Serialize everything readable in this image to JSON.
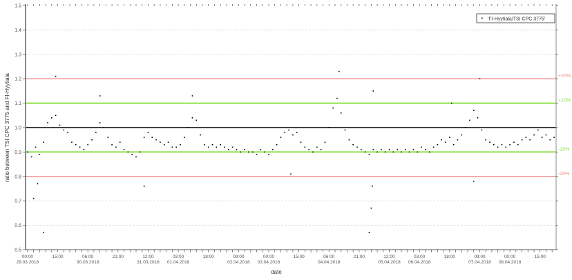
{
  "chart_data": {
    "type": "scatter",
    "title": "",
    "xlabel": "date",
    "ylabel": "ratio between TSI CPC 3775 and FI-Hyytiala",
    "ylim": [
      0.5,
      1.5
    ],
    "xlim": [
      "28.03.2018 23:00",
      "08.04.2018 23:00"
    ],
    "yticks": [
      "0.5",
      "0.6",
      "0.7",
      "0.8",
      "0.9",
      "1.0",
      "1.1",
      "1.2",
      "1.3",
      "1.4",
      "1.5"
    ],
    "xticks": [
      {
        "time": "00:00",
        "date": "29.03.2018"
      },
      {
        "time": "15:00",
        "date": ""
      },
      {
        "time": "06:00",
        "date": "30.03.2018"
      },
      {
        "time": "21:00",
        "date": ""
      },
      {
        "time": "12:00",
        "date": "31.03.2018"
      },
      {
        "time": "03:00",
        "date": "01.04.2018"
      },
      {
        "time": "18:00",
        "date": ""
      },
      {
        "time": "09:00",
        "date": "02.04.2018"
      },
      {
        "time": "00:00",
        "date": "03.04.2018"
      },
      {
        "time": "15:00",
        "date": ""
      },
      {
        "time": "06:00",
        "date": "04.04.2018"
      },
      {
        "time": "21:00",
        "date": ""
      },
      {
        "time": "12:00",
        "date": "05.04.2018"
      },
      {
        "time": "03:00",
        "date": "06.04.2018"
      },
      {
        "time": "18:00",
        "date": ""
      },
      {
        "time": "09:00",
        "date": "07.04.2018"
      },
      {
        "time": "00:00",
        "date": "08.04.2018"
      },
      {
        "time": "15:00",
        "date": ""
      }
    ],
    "grid": "dashed horizontal at 0.6, 0.7, 1.3, 1.4",
    "legend": {
      "placement": "top-right",
      "entries": [
        "'FI-Hyytiala/TSI CPC 3775'"
      ]
    },
    "reference_lines": [
      {
        "y": 1.2,
        "label": "+20%",
        "color": "#f08a8a"
      },
      {
        "y": 1.1,
        "label": "+10%",
        "color": "#8ee04a"
      },
      {
        "y": 1.0,
        "label": "",
        "color": "#000000"
      },
      {
        "y": 0.9,
        "label": "-10%",
        "color": "#8ee04a"
      },
      {
        "y": 0.8,
        "label": "-20%",
        "color": "#f08a8a"
      }
    ],
    "series": [
      {
        "name": "'FI-Hyytiala/TSI CPC 3775'",
        "color": "#000000",
        "sample_times": [
          "00:00",
          "02:00",
          "04:00",
          "06:00",
          "08:00",
          "10:00",
          "12:00",
          "14:00",
          "16:00",
          "18:00",
          "20:00",
          "22:00"
        ],
        "days": [
          {
            "date": "29.03.2018",
            "values": [
              0.9,
              0.88,
              0.92,
              0.89,
              0.94,
              1.02,
              1.04,
              1.05,
              1.01,
              0.99,
              0.98,
              0.94
            ]
          },
          {
            "date": "30.03.2018",
            "values": [
              0.93,
              0.92,
              0.91,
              0.93,
              0.95,
              0.98,
              1.02,
              1.0,
              0.96,
              0.93,
              0.92,
              0.94
            ]
          },
          {
            "date": "31.03.2018",
            "values": [
              0.91,
              0.9,
              0.89,
              0.88,
              0.9,
              0.96,
              0.98,
              0.96,
              0.95,
              0.94,
              0.93,
              0.94
            ]
          },
          {
            "date": "01.04.2018",
            "values": [
              0.92,
              0.92,
              0.93,
              0.96,
              1.0,
              1.04,
              1.03,
              0.97,
              0.93,
              0.92,
              0.93,
              0.92
            ]
          },
          {
            "date": "02.04.2018",
            "values": [
              0.93,
              0.92,
              0.91,
              0.92,
              0.91,
              0.9,
              0.91,
              0.9,
              0.9,
              0.89,
              0.91,
              0.9
            ]
          },
          {
            "date": "03.04.2018",
            "values": [
              0.89,
              0.91,
              0.93,
              0.96,
              0.98,
              0.99,
              0.97,
              0.98,
              0.94,
              0.92,
              0.91,
              0.9
            ]
          },
          {
            "date": "04.04.2018",
            "values": [
              0.92,
              0.91,
              0.94,
              1.0,
              1.08,
              1.12,
              1.06,
              0.99,
              0.95,
              0.93,
              0.92,
              0.91
            ]
          },
          {
            "date": "05.04.2018",
            "values": [
              0.9,
              0.89,
              0.91,
              0.9,
              0.91,
              0.9,
              0.91,
              0.9,
              0.91,
              0.9,
              0.91,
              0.9
            ]
          },
          {
            "date": "06.04.2018",
            "values": [
              0.91,
              0.9,
              0.92,
              0.91,
              0.9,
              0.92,
              0.93,
              0.95,
              0.94,
              0.96,
              0.93,
              0.95
            ]
          },
          {
            "date": "07.04.2018",
            "values": [
              0.97,
              1.0,
              1.03,
              1.07,
              1.04,
              0.99,
              0.95,
              0.94,
              0.93,
              0.92,
              0.93,
              0.92
            ]
          },
          {
            "date": "08.04.2018",
            "values": [
              0.93,
              0.94,
              0.93,
              0.95,
              0.96,
              0.95,
              0.97,
              0.99,
              0.96,
              0.97,
              0.95,
              0.96
            ]
          }
        ],
        "outliers": [
          {
            "x": "29.03.2018 03:00",
            "y": 0.71
          },
          {
            "x": "29.03.2018 05:00",
            "y": 0.77
          },
          {
            "x": "29.03.2018 08:00",
            "y": 0.57
          },
          {
            "x": "29.03.2018 14:00",
            "y": 1.21
          },
          {
            "x": "30.03.2018 12:00",
            "y": 1.13
          },
          {
            "x": "31.03.2018 10:00",
            "y": 0.76
          },
          {
            "x": "01.04.2018 10:00",
            "y": 1.13
          },
          {
            "x": "03.04.2018 11:00",
            "y": 0.81
          },
          {
            "x": "04.04.2018 11:00",
            "y": 1.23
          },
          {
            "x": "05.04.2018 02:00",
            "y": 0.57
          },
          {
            "x": "05.04.2018 03:00",
            "y": 0.67
          },
          {
            "x": "05.04.2018 03:30",
            "y": 0.76
          },
          {
            "x": "05.04.2018 04:00",
            "y": 1.15
          },
          {
            "x": "06.04.2018 19:00",
            "y": 1.1
          },
          {
            "x": "07.04.2018 06:00",
            "y": 0.78
          },
          {
            "x": "07.04.2018 09:00",
            "y": 1.2
          }
        ]
      }
    ]
  }
}
